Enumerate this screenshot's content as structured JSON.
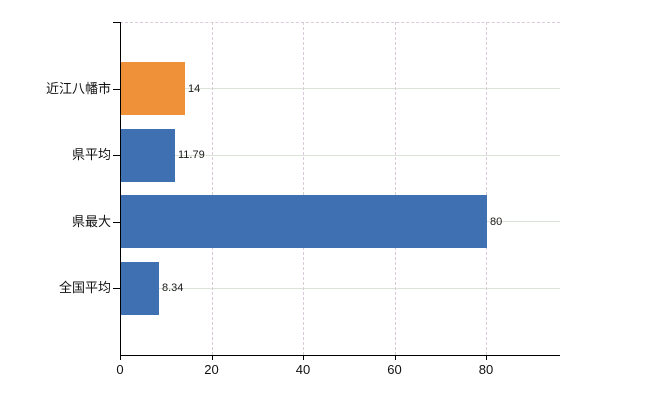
{
  "chart_data": {
    "type": "bar",
    "orientation": "horizontal",
    "title": "",
    "xlabel": "",
    "ylabel": "",
    "categories": [
      "近江八幡市",
      "県平均",
      "県最大",
      "全国平均"
    ],
    "values": [
      14,
      11.79,
      80,
      8.34
    ],
    "value_labels": [
      "14",
      "11.79",
      "80",
      "8.34"
    ],
    "bar_colors": [
      "#ee9138",
      "#3f70b1",
      "#3f70b1",
      "#3f70b1"
    ],
    "x_ticks": [
      0,
      20,
      40,
      60,
      80
    ],
    "x_tick_labels": [
      "0",
      "20",
      "40",
      "60",
      "80"
    ],
    "xlim": [
      0,
      96
    ],
    "grid": true,
    "legend_visible": false,
    "colors": {
      "bar_orange": "#ee9138",
      "bar_blue": "#3f70b1",
      "horizontal_gridline": "#dce3d8",
      "vertical_gridline": "#d7ccd7",
      "axis": "#000000",
      "label_text": "#111111"
    }
  }
}
